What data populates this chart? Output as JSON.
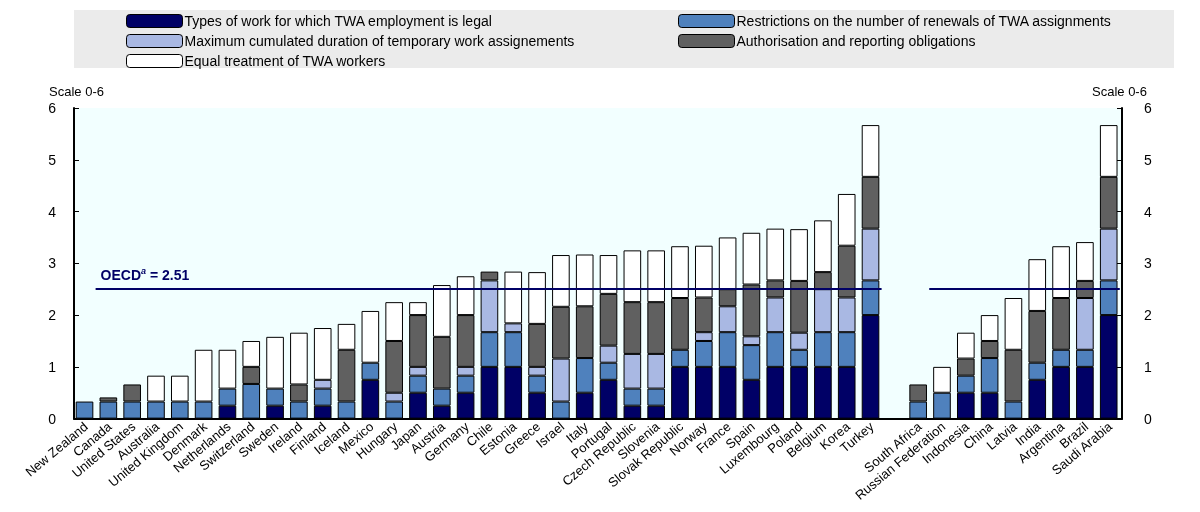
{
  "chart_data": {
    "type": "bar",
    "stacked": true,
    "ylabel": "Scale 0-6",
    "y2label": "Scale 0-6",
    "ylim": [
      0,
      6
    ],
    "yticks": [
      0,
      1,
      2,
      3,
      4,
      5,
      6
    ],
    "y2lim": [
      0,
      6
    ],
    "y2ticks": [
      0,
      1,
      2,
      3,
      4,
      5,
      6
    ],
    "grid": false,
    "legend": "top",
    "categories": [
      "New Zealand",
      "Canada",
      "United States",
      "Australia",
      "United Kingdom",
      "Denmark",
      "Netherlands",
      "Switzerland",
      "Sweden",
      "Ireland",
      "Finland",
      "Iceland",
      "Mexico",
      "Hungary",
      "Japan",
      "Austria",
      "Germany",
      "Chile",
      "Estonia",
      "Greece",
      "Israel",
      "Italy",
      "Portugal",
      "Czech Republic",
      "Slovenia",
      "Slovak Republic",
      "Norway",
      "France",
      "Spain",
      "Luxembourg",
      "Poland",
      "Belgium",
      "Korea",
      "Turkey",
      null,
      "South Africa",
      "Russian Federation",
      "Indonesia",
      "China",
      "Latvia",
      "India",
      "Argentina",
      "Brazil",
      "Saudi Arabia"
    ],
    "series": [
      {
        "name": "Types of work for which TWA employment is legal",
        "color": "#000066",
        "values": [
          0,
          0,
          0,
          0,
          0,
          0,
          0.25,
          0,
          0.25,
          0,
          0.25,
          0,
          0.75,
          0,
          0.5,
          0.25,
          0.5,
          1,
          1,
          0.5,
          0,
          0.5,
          0.75,
          0.25,
          0.25,
          1,
          1,
          1,
          0.75,
          1,
          1,
          1,
          1,
          2,
          null,
          0,
          0,
          0.5,
          0.5,
          0,
          0.75,
          1,
          1,
          2
        ]
      },
      {
        "name": "Restrictions on the number of renewals of TWA assignments",
        "color": "#4f81bd",
        "values": [
          0.33,
          0.33,
          0.33,
          0.33,
          0.33,
          0.33,
          0.33,
          0.67,
          0.33,
          0.33,
          0.33,
          0.33,
          0.33,
          0.33,
          0.33,
          0.33,
          0.33,
          0.67,
          0.67,
          0.33,
          0.33,
          0.67,
          0.33,
          0.33,
          0.33,
          0.33,
          0.5,
          0.67,
          0.67,
          0.67,
          0.33,
          0.67,
          0.67,
          0.67,
          null,
          0.33,
          0.5,
          0.33,
          0.67,
          0.33,
          0.33,
          0.33,
          0.33,
          0.67
        ]
      },
      {
        "name": "Maximum cumulated duration of temporary work assignements",
        "color": "#a9b8e3",
        "values": [
          0,
          0,
          0,
          0,
          0,
          0,
          0,
          0,
          0,
          0,
          0.17,
          0,
          0,
          0.17,
          0.17,
          0,
          0.17,
          1,
          0.17,
          0.17,
          0.83,
          0,
          0.33,
          0.67,
          0.67,
          0,
          0.17,
          0.5,
          0.17,
          0.67,
          0.33,
          0.83,
          0.67,
          1,
          null,
          0,
          0,
          0,
          0,
          0,
          0,
          0,
          1,
          1
        ]
      },
      {
        "name": "Authorisation and reporting obligations",
        "color": "#606060",
        "values": [
          0,
          0.08,
          0.33,
          0,
          0,
          0,
          0,
          0.33,
          0,
          0.33,
          0,
          1,
          0,
          1,
          1,
          1,
          1,
          0.17,
          0,
          0.83,
          1,
          1,
          1,
          1,
          1,
          1,
          0.67,
          0.33,
          1,
          0.33,
          1,
          0.33,
          1,
          1,
          null,
          0.33,
          0,
          0.33,
          0.33,
          1,
          1,
          1,
          0.33,
          1
        ]
      },
      {
        "name": "Equal treatment of TWA workers",
        "color": "#ffffff",
        "values": [
          0,
          0,
          0,
          0.5,
          0.5,
          1,
          0.75,
          0.5,
          1,
          1,
          1,
          0.5,
          1,
          0.75,
          0.25,
          1,
          0.75,
          0,
          1,
          1,
          1,
          1,
          0.75,
          1,
          1,
          1,
          1,
          1,
          1,
          1,
          1,
          1,
          1,
          1,
          null,
          0,
          0.5,
          0.5,
          0.5,
          1,
          1,
          1,
          0.75,
          1
        ]
      }
    ],
    "ref_lines": [
      {
        "axis": "y",
        "value": 2.51,
        "label": "OECD$^{a}$ = 2.51",
        "color": "#000066"
      }
    ]
  }
}
